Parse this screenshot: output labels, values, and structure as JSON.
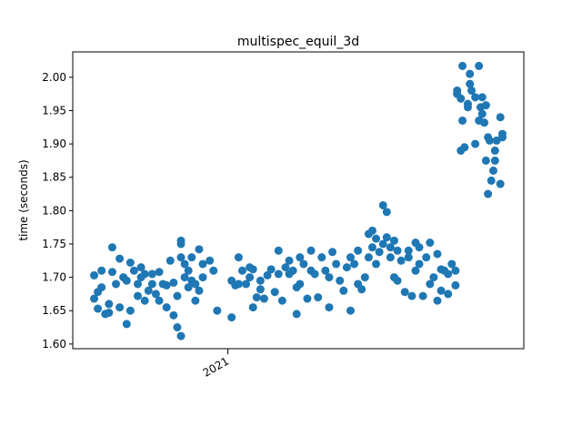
{
  "chart_data": {
    "type": "scatter",
    "title": "multispec_equil_3d",
    "ylabel": "time (seconds)",
    "color": "#1f77b4",
    "x": [
      2020.675,
      2020.675,
      2020.684,
      2020.684,
      2020.693,
      2020.693,
      2020.702,
      2020.711,
      2020.711,
      2020.719,
      2020.719,
      2020.728,
      2020.737,
      2020.737,
      2020.746,
      2020.754,
      2020.754,
      2020.763,
      2020.763,
      2020.772,
      2020.781,
      2020.781,
      2020.789,
      2020.789,
      2020.798,
      2020.798,
      2020.807,
      2020.816,
      2020.816,
      2020.825,
      2020.833,
      2020.833,
      2020.842,
      2020.851,
      2020.851,
      2020.86,
      2020.868,
      2020.868,
      2020.877,
      2020.877,
      2020.886,
      2020.886,
      2020.886,
      2020.886,
      2020.895,
      2020.895,
      2020.904,
      2020.904,
      2020.912,
      2020.912,
      2020.921,
      2020.921,
      2020.93,
      2020.93,
      2020.939,
      2020.939,
      2020.956,
      2020.965,
      2020.974,
      2021.009,
      2021.009,
      2021.018,
      2021.026,
      2021.026,
      2021.035,
      2021.044,
      2021.053,
      2021.053,
      2021.061,
      2021.061,
      2021.07,
      2021.079,
      2021.079,
      2021.088,
      2021.096,
      2021.105,
      2021.114,
      2021.123,
      2021.123,
      2021.132,
      2021.14,
      2021.149,
      2021.149,
      2021.158,
      2021.167,
      2021.167,
      2021.175,
      2021.175,
      2021.184,
      2021.193,
      2021.202,
      2021.202,
      2021.211,
      2021.219,
      2021.228,
      2021.237,
      2021.246,
      2021.246,
      2021.254,
      2021.263,
      2021.272,
      2021.281,
      2021.289,
      2021.298,
      2021.298,
      2021.307,
      2021.316,
      2021.316,
      2021.325,
      2021.333,
      2021.342,
      2021.342,
      2021.351,
      2021.351,
      2021.36,
      2021.36,
      2021.368,
      2021.377,
      2021.377,
      2021.386,
      2021.386,
      2021.395,
      2021.395,
      2021.404,
      2021.404,
      2021.412,
      2021.412,
      2021.421,
      2021.43,
      2021.439,
      2021.439,
      2021.447,
      2021.456,
      2021.456,
      2021.465,
      2021.465,
      2021.474,
      2021.482,
      2021.491,
      2021.491,
      2021.5,
      2021.509,
      2021.509,
      2021.518,
      2021.518,
      2021.526,
      2021.535,
      2021.535,
      2021.544,
      2021.553,
      2021.553,
      2021.557,
      2021.557,
      2021.566,
      2021.566,
      2021.57,
      2021.57,
      2021.575,
      2021.583,
      2021.583,
      2021.588,
      2021.588,
      2021.592,
      2021.601,
      2021.601,
      2021.61,
      2021.61,
      2021.614,
      2021.618,
      2021.618,
      2021.623,
      2021.627,
      2021.627,
      2021.632,
      2021.632,
      2021.636,
      2021.64,
      2021.645,
      2021.649,
      2021.649,
      2021.653,
      2021.662,
      2021.662,
      2021.667,
      2021.667
    ],
    "values": [
      1.703,
      1.668,
      1.653,
      1.678,
      1.71,
      1.685,
      1.645,
      1.66,
      1.647,
      1.708,
      1.745,
      1.69,
      1.728,
      1.655,
      1.7,
      1.63,
      1.695,
      1.722,
      1.65,
      1.71,
      1.69,
      1.672,
      1.715,
      1.7,
      1.665,
      1.705,
      1.68,
      1.705,
      1.69,
      1.675,
      1.708,
      1.665,
      1.69,
      1.655,
      1.688,
      1.725,
      1.692,
      1.643,
      1.625,
      1.672,
      1.612,
      1.75,
      1.755,
      1.73,
      1.72,
      1.7,
      1.685,
      1.71,
      1.73,
      1.695,
      1.665,
      1.69,
      1.742,
      1.68,
      1.72,
      1.7,
      1.725,
      1.71,
      1.65,
      1.695,
      1.64,
      1.688,
      1.73,
      1.69,
      1.71,
      1.69,
      1.715,
      1.7,
      1.655,
      1.712,
      1.67,
      1.695,
      1.682,
      1.668,
      1.703,
      1.712,
      1.678,
      1.74,
      1.705,
      1.665,
      1.715,
      1.725,
      1.705,
      1.71,
      1.645,
      1.685,
      1.73,
      1.69,
      1.72,
      1.668,
      1.74,
      1.71,
      1.705,
      1.67,
      1.73,
      1.71,
      1.655,
      1.7,
      1.738,
      1.72,
      1.695,
      1.68,
      1.715,
      1.65,
      1.73,
      1.72,
      1.69,
      1.74,
      1.682,
      1.7,
      1.765,
      1.73,
      1.77,
      1.745,
      1.758,
      1.72,
      1.738,
      1.808,
      1.75,
      1.798,
      1.76,
      1.73,
      1.745,
      1.7,
      1.755,
      1.695,
      1.74,
      1.725,
      1.678,
      1.74,
      1.73,
      1.672,
      1.752,
      1.71,
      1.745,
      1.72,
      1.672,
      1.73,
      1.752,
      1.69,
      1.7,
      1.735,
      1.665,
      1.712,
      1.68,
      1.71,
      1.675,
      1.705,
      1.72,
      1.71,
      1.688,
      1.98,
      1.975,
      1.968,
      1.89,
      2.017,
      1.935,
      1.895,
      1.955,
      1.96,
      2.005,
      1.99,
      1.98,
      1.9,
      1.97,
      2.017,
      1.935,
      1.955,
      1.97,
      1.945,
      1.932,
      1.875,
      1.958,
      1.91,
      1.825,
      1.905,
      1.845,
      1.86,
      1.875,
      1.89,
      1.905,
      1.94,
      1.84,
      1.91,
      1.915
    ],
    "xlim": [
      2020.623,
      2021.719
    ],
    "xticks": [
      2021
    ],
    "ylim": [
      1.593,
      2.038
    ],
    "yticks": [
      {
        "value": 1.6,
        "label": "1.60"
      },
      {
        "value": 1.65,
        "label": "1.65"
      },
      {
        "value": 1.7,
        "label": "1.70"
      },
      {
        "value": 1.75,
        "label": "1.75"
      },
      {
        "value": 1.8,
        "label": "1.80"
      },
      {
        "value": 1.85,
        "label": "1.85"
      },
      {
        "value": 1.9,
        "label": "1.90"
      },
      {
        "value": 1.95,
        "label": "1.95"
      },
      {
        "value": 2.0,
        "label": "2.00"
      }
    ]
  }
}
